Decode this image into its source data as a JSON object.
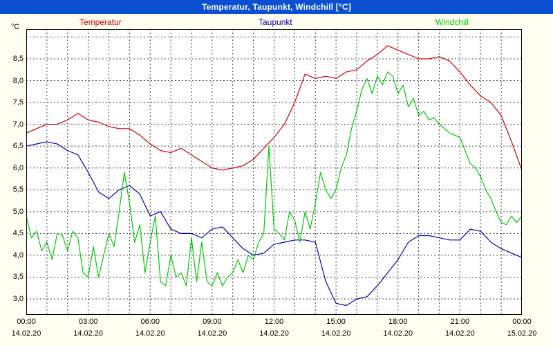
{
  "window": {
    "title": "Temperatur, Taupunkt, Windchill [°C]"
  },
  "colors": {
    "title_bar": "#0a4fd2",
    "title_text": "#ffffff",
    "background": "#fffef0",
    "plot_bg": "#ffffff",
    "grid": "#3f3f3f",
    "axis": "#000000"
  },
  "chart_data": {
    "type": "line",
    "title": "Temperatur, Taupunkt, Windchill [°C]",
    "xlabel": "",
    "ylabel": "°C",
    "ylim": [
      2.64,
      9.18
    ],
    "grid": true,
    "legend_position": "top",
    "x_unit": "hours",
    "x_range": [
      0,
      24
    ],
    "y_ticks": [
      {
        "v": 8.5,
        "label": "8,5"
      },
      {
        "v": 8.0,
        "label": "8,0"
      },
      {
        "v": 7.5,
        "label": "7,5"
      },
      {
        "v": 7.0,
        "label": "7,0"
      },
      {
        "v": 6.5,
        "label": "6,5"
      },
      {
        "v": 6.0,
        "label": "6,0"
      },
      {
        "v": 5.5,
        "label": "5,5"
      },
      {
        "v": 5.0,
        "label": "5,0"
      },
      {
        "v": 4.5,
        "label": "4,5"
      },
      {
        "v": 4.0,
        "label": "4,0"
      },
      {
        "v": 3.5,
        "label": "3,5"
      },
      {
        "v": 3.0,
        "label": "3,0"
      }
    ],
    "x_ticks": [
      {
        "h": 0,
        "time": "00:00",
        "date": "14.02.20"
      },
      {
        "h": 3,
        "time": "03:00",
        "date": "14.02.20"
      },
      {
        "h": 6,
        "time": "06:00",
        "date": "14.02.20"
      },
      {
        "h": 9,
        "time": "09:00",
        "date": "14.02.20"
      },
      {
        "h": 12,
        "time": "12:00",
        "date": "14.02.20"
      },
      {
        "h": 15,
        "time": "15:00",
        "date": "14.02.20"
      },
      {
        "h": 18,
        "time": "18:00",
        "date": "14.02.20"
      },
      {
        "h": 21,
        "time": "21:00",
        "date": "14.02.20"
      },
      {
        "h": 24,
        "time": "00:00",
        "date": "15.02.20"
      }
    ],
    "series": [
      {
        "name": "Temperatur",
        "color": "#cc0000",
        "x_start": 0,
        "x_step": 0.5,
        "values": [
          6.8,
          6.9,
          7.0,
          7.0,
          7.1,
          7.25,
          7.1,
          7.05,
          6.95,
          6.9,
          6.9,
          6.75,
          6.55,
          6.4,
          6.35,
          6.45,
          6.3,
          6.15,
          6.0,
          5.95,
          6.0,
          6.05,
          6.2,
          6.45,
          6.7,
          7.0,
          7.5,
          8.15,
          8.05,
          8.1,
          8.05,
          8.2,
          8.25,
          8.45,
          8.6,
          8.8,
          8.7,
          8.6,
          8.5,
          8.5,
          8.55,
          8.45,
          8.2,
          7.9,
          7.65,
          7.5,
          7.2,
          6.6,
          5.95
        ]
      },
      {
        "name": "Taupunkt",
        "color": "#0000b4",
        "x_start": 0,
        "x_step": 0.5,
        "values": [
          6.5,
          6.55,
          6.6,
          6.55,
          6.4,
          6.3,
          5.9,
          5.45,
          5.3,
          5.5,
          5.6,
          5.4,
          4.9,
          5.0,
          4.6,
          4.5,
          4.5,
          4.4,
          4.6,
          4.65,
          4.4,
          4.15,
          4.0,
          4.05,
          4.25,
          4.3,
          4.35,
          4.35,
          4.3,
          3.4,
          2.9,
          2.85,
          3.0,
          3.05,
          3.3,
          3.6,
          3.9,
          4.3,
          4.45,
          4.45,
          4.4,
          4.35,
          4.35,
          4.6,
          4.55,
          4.3,
          4.15,
          4.05,
          3.95
        ]
      },
      {
        "name": "Windchill",
        "color": "#00c800",
        "x_start": 0,
        "x_step": 0.25,
        "values": [
          4.9,
          4.4,
          4.55,
          4.1,
          4.3,
          3.9,
          4.5,
          4.45,
          4.1,
          4.55,
          4.4,
          3.6,
          3.5,
          4.2,
          3.5,
          4.0,
          4.5,
          4.2,
          5.0,
          5.9,
          5.2,
          4.3,
          4.7,
          3.6,
          4.3,
          4.9,
          3.4,
          3.3,
          4.0,
          3.5,
          3.6,
          3.3,
          4.4,
          3.4,
          4.3,
          3.4,
          3.3,
          3.6,
          3.3,
          3.5,
          3.6,
          3.9,
          3.6,
          4.0,
          3.9,
          4.3,
          4.5,
          6.5,
          4.6,
          4.5,
          4.35,
          5.0,
          4.8,
          4.3,
          5.0,
          4.6,
          5.2,
          5.9,
          5.5,
          5.3,
          5.5,
          6.0,
          6.3,
          6.9,
          7.3,
          7.8,
          8.05,
          7.7,
          8.1,
          7.9,
          8.2,
          8.1,
          7.7,
          7.9,
          7.4,
          7.6,
          7.2,
          7.3,
          7.1,
          7.15,
          7.0,
          6.9,
          6.8,
          6.75,
          6.7,
          6.4,
          6.1,
          6.0,
          5.8,
          5.5,
          5.3,
          5.0,
          4.75,
          4.7,
          4.9,
          4.75,
          4.9
        ]
      }
    ]
  }
}
